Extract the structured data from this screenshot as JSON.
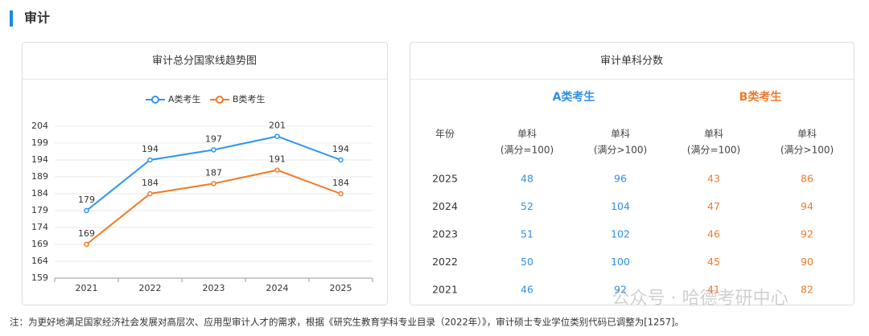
{
  "header": {
    "title": "审计"
  },
  "chart_data": {
    "type": "line",
    "title": "审计总分国家线趋势图",
    "categories": [
      "2021",
      "2022",
      "2023",
      "2024",
      "2025"
    ],
    "series": [
      {
        "name": "A类考生",
        "color": "#2f96f0",
        "values": [
          179,
          194,
          197,
          201,
          194
        ]
      },
      {
        "name": "B类考生",
        "color": "#f07b28",
        "values": [
          169,
          184,
          187,
          191,
          184
        ]
      }
    ],
    "ylim": [
      159,
      204
    ],
    "yticks": [
      159,
      164,
      169,
      174,
      179,
      184,
      189,
      194,
      199,
      204
    ],
    "grid": true,
    "legend": "top"
  },
  "table": {
    "title": "审计单科分数",
    "groups": [
      "A类考生",
      "B类考生"
    ],
    "columns": [
      [
        "年份"
      ],
      [
        "单科",
        "(满分=100)"
      ],
      [
        "单科",
        "(满分>100)"
      ],
      [
        "单科",
        "(满分=100)"
      ],
      [
        "单科",
        "(满分>100)"
      ]
    ],
    "rows": [
      [
        "2025",
        "48",
        "96",
        "43",
        "86"
      ],
      [
        "2024",
        "52",
        "104",
        "47",
        "94"
      ],
      [
        "2023",
        "51",
        "102",
        "46",
        "92"
      ],
      [
        "2022",
        "50",
        "100",
        "45",
        "90"
      ],
      [
        "2021",
        "46",
        "92",
        "41",
        "82"
      ]
    ]
  },
  "watermark": "公众号 · 哈德考研中心",
  "note": "注：为更好地满足国家经济社会发展对高层次、应用型审计人才的需求，根据《研究生教育学科专业目录（2022年）》，审计硕士专业学位类别代码已调整为[1257]。"
}
